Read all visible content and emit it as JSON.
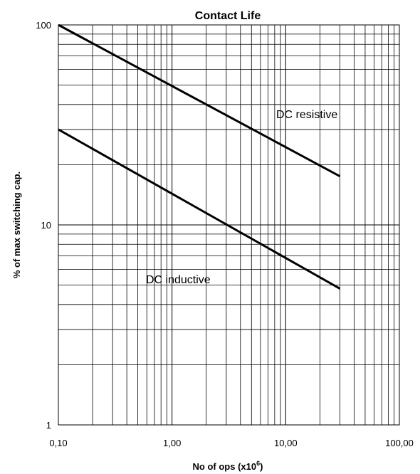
{
  "chart_data": {
    "type": "line",
    "title": "Contact Life",
    "xlabel": "No of ops (x10",
    "xlabel_sup": "6",
    "xlabel_end": ")",
    "ylabel": "% of max switching cap.",
    "x_scale": "log",
    "y_scale": "log",
    "xlim": [
      0.1,
      100
    ],
    "ylim": [
      1,
      100
    ],
    "grid": true,
    "x_ticks": [
      0.1,
      1,
      10,
      100
    ],
    "x_tick_labels": [
      "0,10",
      "1,00",
      "10,00",
      "100,00"
    ],
    "y_ticks": [
      1,
      10,
      100
    ],
    "y_tick_labels": [
      "1",
      "10",
      "100"
    ],
    "series": [
      {
        "name": "DC resistive",
        "x": [
          0.1,
          30
        ],
        "y": [
          100,
          17.5
        ]
      },
      {
        "name": "DC inductive",
        "x": [
          0.1,
          30
        ],
        "y": [
          30,
          4.8
        ]
      }
    ]
  }
}
